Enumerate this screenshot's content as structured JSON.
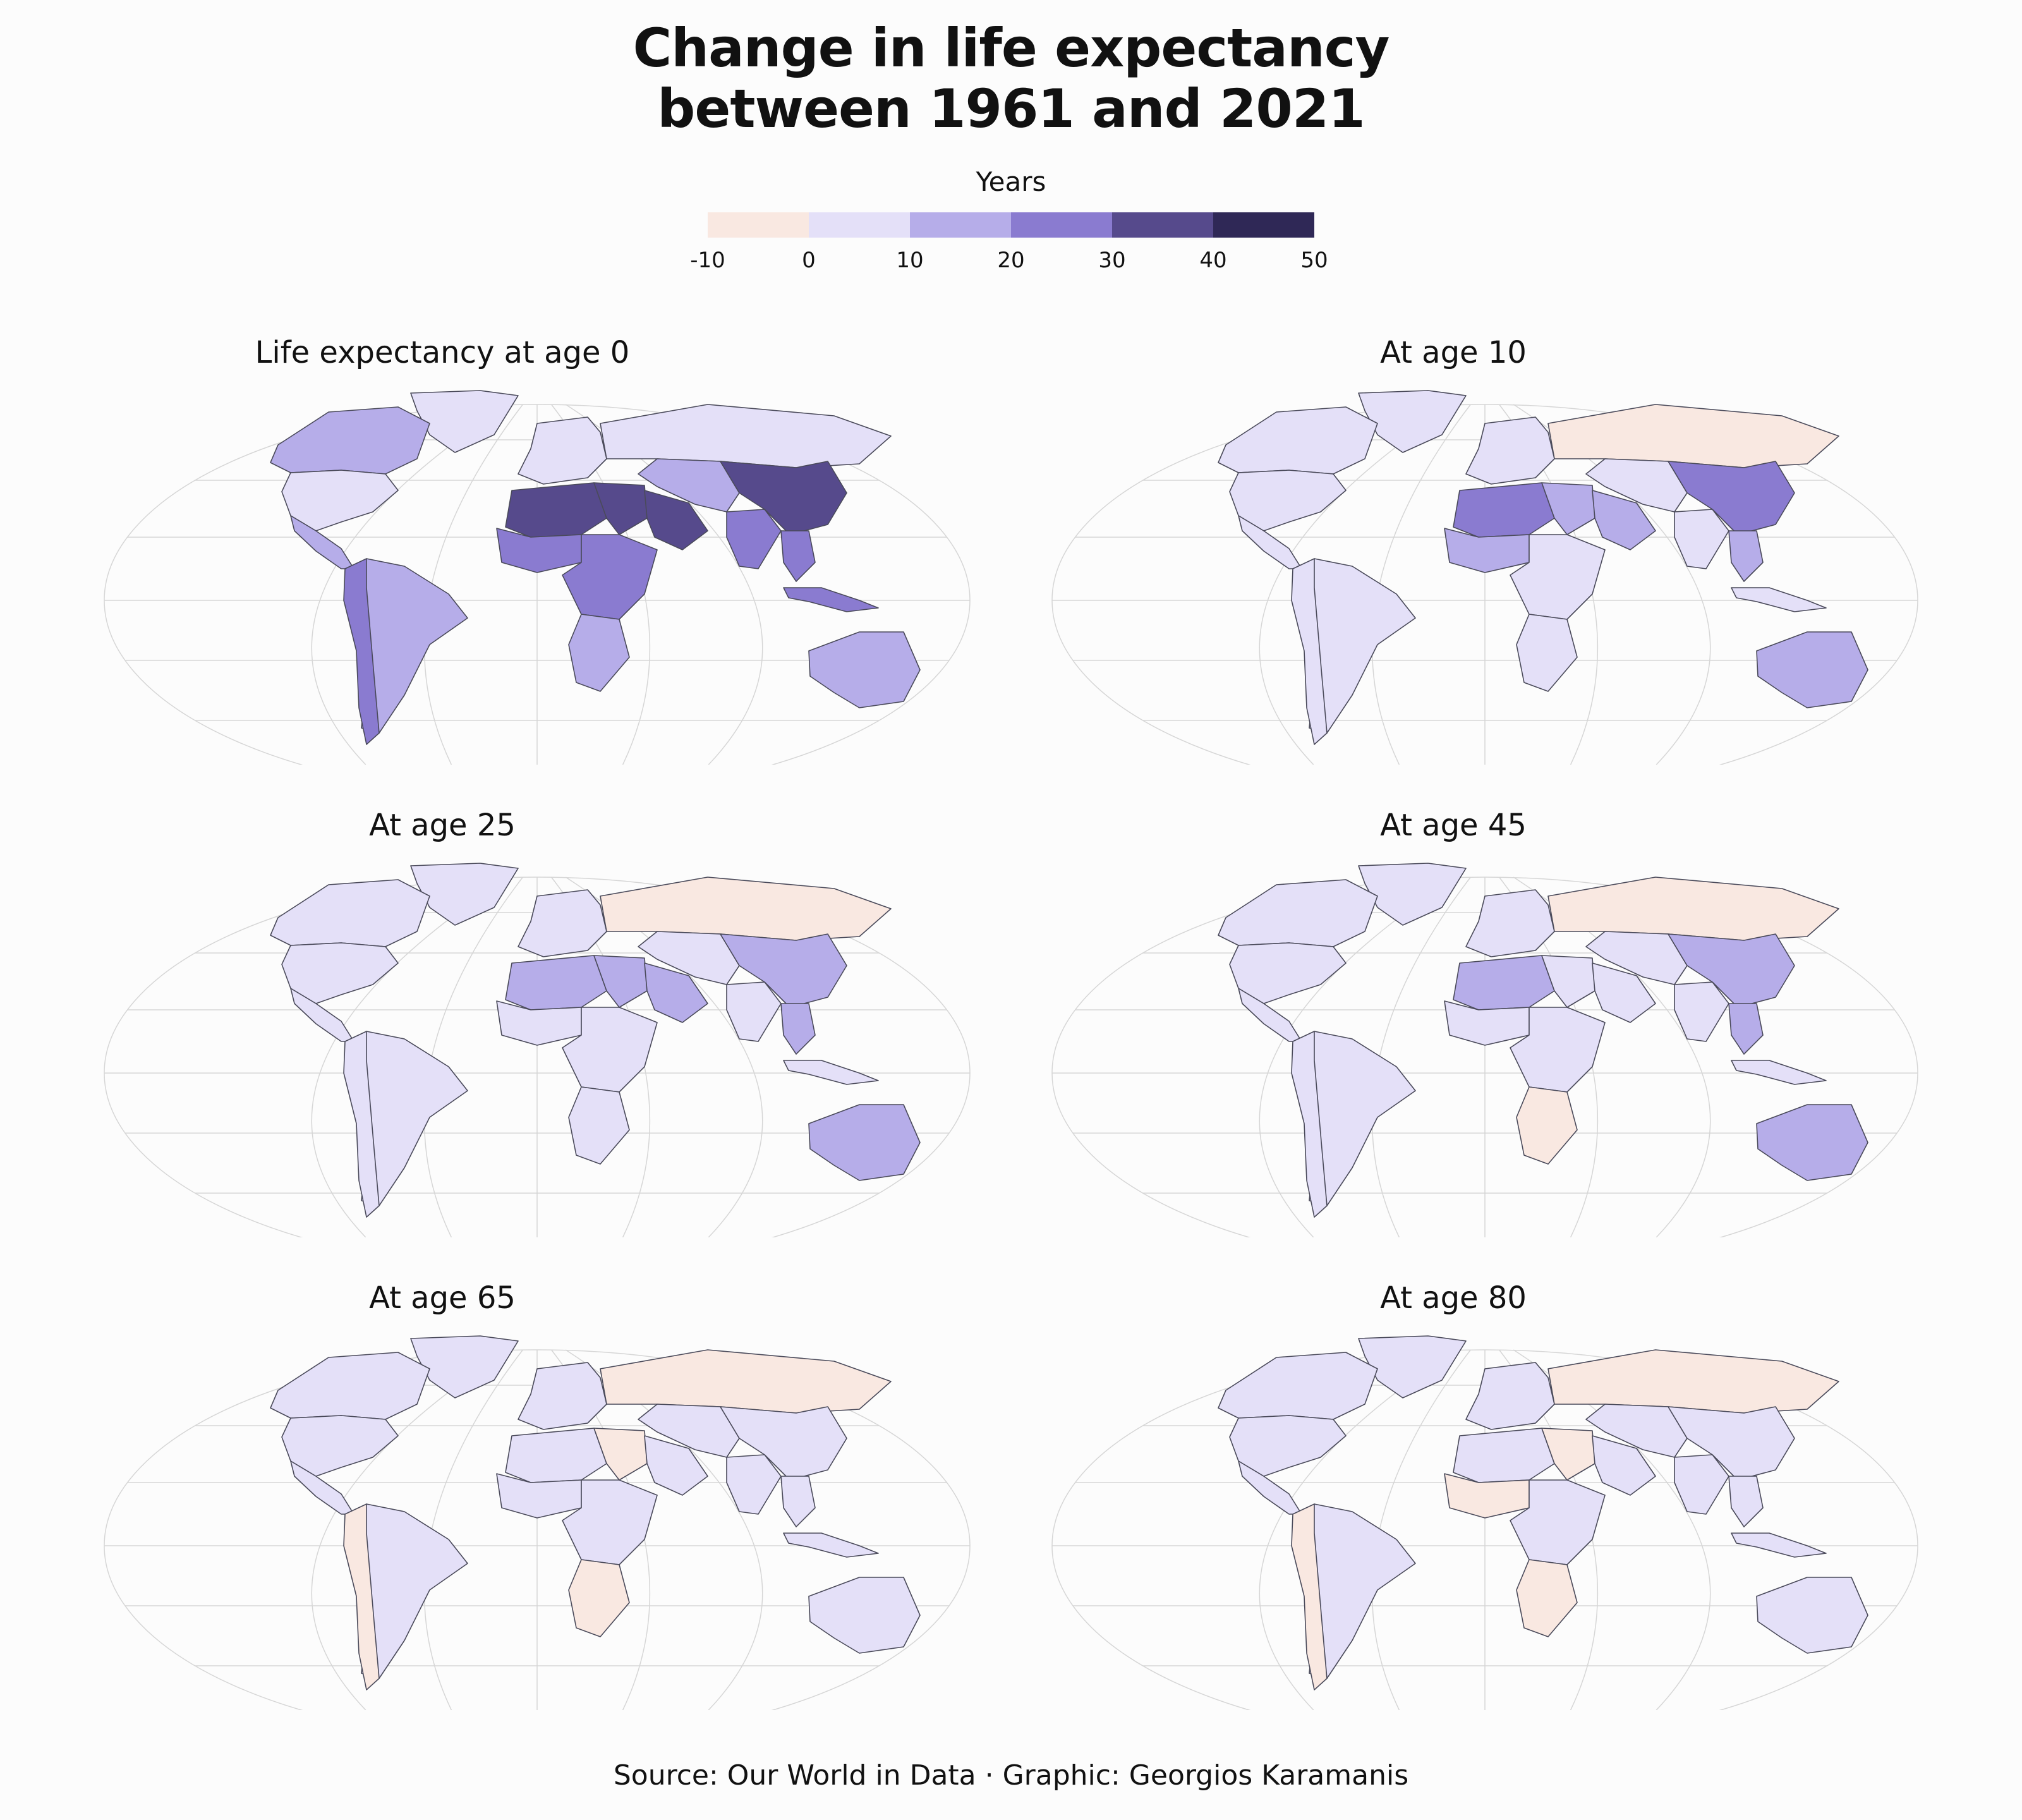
{
  "title": {
    "line1": "Change in life expectancy",
    "line2": "between 1961 and 2021"
  },
  "legend": {
    "title": "Years",
    "bins": [
      {
        "from": -10,
        "to": 0,
        "color": "#f9e8e1"
      },
      {
        "from": 0,
        "to": 10,
        "color": "#e4e0f8"
      },
      {
        "from": 10,
        "to": 20,
        "color": "#b6ade9"
      },
      {
        "from": 20,
        "to": 30,
        "color": "#8a7bd0"
      },
      {
        "from": 30,
        "to": 40,
        "color": "#564a8c"
      },
      {
        "from": 40,
        "to": 50,
        "color": "#2f2856"
      }
    ],
    "ticks": [
      "-10",
      "0",
      "10",
      "20",
      "30",
      "40",
      "50"
    ]
  },
  "panels": [
    {
      "title": "Life expectancy at age 0",
      "regions": {
        "north_america": "#b6ade9",
        "usa": "#e4e0f8",
        "central_america": "#b6ade9",
        "south_america": "#b6ade9",
        "andes": "#8a7bd0",
        "europe": "#e4e0f8",
        "russia": "#e4e0f8",
        "west_africa": "#8a7bd0",
        "sahara": "#564a8c",
        "egypt": "#564a8c",
        "central_africa": "#8a7bd0",
        "southern_africa": "#b6ade9",
        "arabia": "#564a8c",
        "central_asia": "#b6ade9",
        "india": "#8a7bd0",
        "china": "#564a8c",
        "southeast_asia": "#8a7bd0",
        "indonesia": "#8a7bd0",
        "australia": "#b6ade9",
        "greenland": "#e4e0f8"
      }
    },
    {
      "title": "At age 10",
      "regions": {
        "north_america": "#e4e0f8",
        "usa": "#e4e0f8",
        "central_america": "#e4e0f8",
        "south_america": "#e4e0f8",
        "andes": "#e4e0f8",
        "europe": "#e4e0f8",
        "russia": "#f9e8e1",
        "west_africa": "#b6ade9",
        "sahara": "#8a7bd0",
        "egypt": "#b6ade9",
        "central_africa": "#e4e0f8",
        "southern_africa": "#e4e0f8",
        "arabia": "#b6ade9",
        "central_asia": "#e4e0f8",
        "india": "#e4e0f8",
        "china": "#8a7bd0",
        "southeast_asia": "#b6ade9",
        "indonesia": "#e4e0f8",
        "australia": "#b6ade9",
        "greenland": "#e4e0f8"
      }
    },
    {
      "title": "At age 25",
      "regions": {
        "north_america": "#e4e0f8",
        "usa": "#e4e0f8",
        "central_america": "#e4e0f8",
        "south_america": "#e4e0f8",
        "andes": "#e4e0f8",
        "europe": "#e4e0f8",
        "russia": "#f9e8e1",
        "west_africa": "#e4e0f8",
        "sahara": "#b6ade9",
        "egypt": "#b6ade9",
        "central_africa": "#e4e0f8",
        "southern_africa": "#e4e0f8",
        "arabia": "#b6ade9",
        "central_asia": "#e4e0f8",
        "india": "#e4e0f8",
        "china": "#b6ade9",
        "southeast_asia": "#b6ade9",
        "indonesia": "#e4e0f8",
        "australia": "#b6ade9",
        "greenland": "#e4e0f8"
      }
    },
    {
      "title": "At age 45",
      "regions": {
        "north_america": "#e4e0f8",
        "usa": "#e4e0f8",
        "central_america": "#e4e0f8",
        "south_america": "#e4e0f8",
        "andes": "#e4e0f8",
        "europe": "#e4e0f8",
        "russia": "#f9e8e1",
        "west_africa": "#e4e0f8",
        "sahara": "#b6ade9",
        "egypt": "#e4e0f8",
        "central_africa": "#e4e0f8",
        "southern_africa": "#f9e8e1",
        "arabia": "#e4e0f8",
        "central_asia": "#e4e0f8",
        "india": "#e4e0f8",
        "china": "#b6ade9",
        "southeast_asia": "#b6ade9",
        "indonesia": "#e4e0f8",
        "australia": "#b6ade9",
        "greenland": "#e4e0f8"
      }
    },
    {
      "title": "At age 65",
      "regions": {
        "north_america": "#e4e0f8",
        "usa": "#e4e0f8",
        "central_america": "#e4e0f8",
        "south_america": "#e4e0f8",
        "andes": "#f9e8e1",
        "europe": "#e4e0f8",
        "russia": "#f9e8e1",
        "west_africa": "#e4e0f8",
        "sahara": "#e4e0f8",
        "egypt": "#f9e8e1",
        "central_africa": "#e4e0f8",
        "southern_africa": "#f9e8e1",
        "arabia": "#e4e0f8",
        "central_asia": "#e4e0f8",
        "india": "#e4e0f8",
        "china": "#e4e0f8",
        "southeast_asia": "#e4e0f8",
        "indonesia": "#e4e0f8",
        "australia": "#e4e0f8",
        "greenland": "#e4e0f8"
      }
    },
    {
      "title": "At age 80",
      "regions": {
        "north_america": "#e4e0f8",
        "usa": "#e4e0f8",
        "central_america": "#e4e0f8",
        "south_america": "#e4e0f8",
        "andes": "#f9e8e1",
        "europe": "#e4e0f8",
        "russia": "#f9e8e1",
        "west_africa": "#f9e8e1",
        "sahara": "#e4e0f8",
        "egypt": "#f9e8e1",
        "central_africa": "#e4e0f8",
        "southern_africa": "#f9e8e1",
        "arabia": "#e4e0f8",
        "central_asia": "#e4e0f8",
        "india": "#e4e0f8",
        "china": "#e4e0f8",
        "southeast_asia": "#e4e0f8",
        "indonesia": "#e4e0f8",
        "australia": "#e4e0f8",
        "greenland": "#e4e0f8"
      }
    }
  ],
  "source": "Source: Our World in Data · Graphic: Georgios Karamanis"
}
